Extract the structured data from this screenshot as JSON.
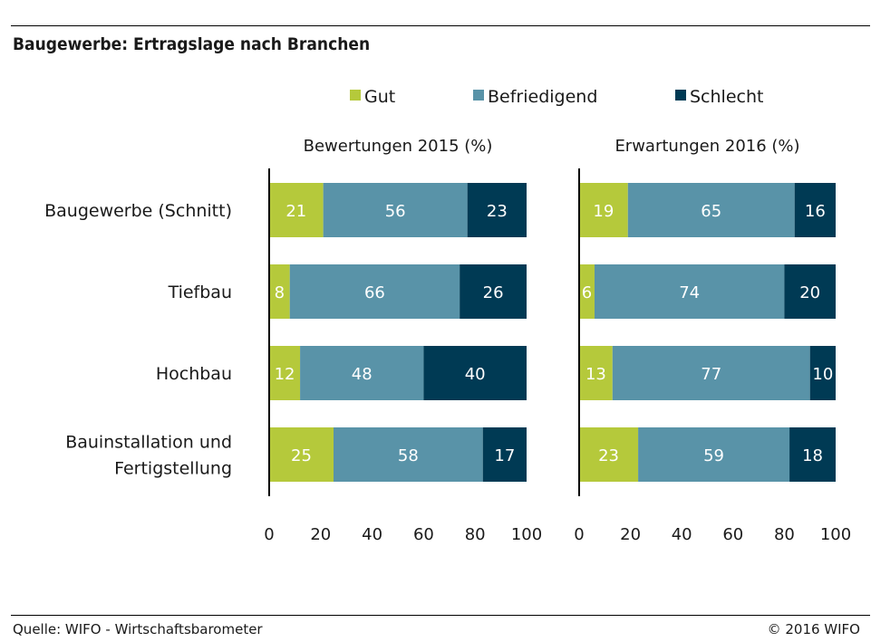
{
  "title": "Baugewerbe: Ertragslage nach Branchen",
  "source": "Quelle: WIFO - Wirtschaftsbarometer",
  "copyright": "© 2016 WIFO",
  "colors": {
    "gut": "#b5c93b",
    "befriedigend": "#5993a8",
    "schlecht": "#003a54",
    "text": "#1a1a1a"
  },
  "chart_data": [
    {
      "type": "bar",
      "orientation": "horizontal",
      "stacked": true,
      "title": "Bewertungen 2015 (%)",
      "categories": [
        "Baugewerbe (Schnitt)",
        "Tiefbau",
        "Hochbau",
        "Bauinstallation und Fertigstellung"
      ],
      "category_lines": [
        [
          "Baugewerbe (Schnitt)"
        ],
        [
          "Tiefbau"
        ],
        [
          "Hochbau"
        ],
        [
          "Bauinstallation und",
          "Fertigstellung"
        ]
      ],
      "series": [
        {
          "name": "Gut",
          "values": [
            21,
            8,
            12,
            25
          ]
        },
        {
          "name": "Befriedigend",
          "values": [
            56,
            66,
            48,
            58
          ]
        },
        {
          "name": "Schlecht",
          "values": [
            23,
            26,
            40,
            17
          ]
        }
      ],
      "xlim": [
        0,
        100
      ],
      "xticks": [
        0,
        20,
        40,
        60,
        80,
        100
      ],
      "legend_position": "top",
      "grid": false
    },
    {
      "type": "bar",
      "orientation": "horizontal",
      "stacked": true,
      "title": "Erwartungen 2016 (%)",
      "categories": [
        "Baugewerbe (Schnitt)",
        "Tiefbau",
        "Hochbau",
        "Bauinstallation und Fertigstellung"
      ],
      "series": [
        {
          "name": "Gut",
          "values": [
            19,
            6,
            13,
            23
          ]
        },
        {
          "name": "Befriedigend",
          "values": [
            65,
            74,
            77,
            59
          ]
        },
        {
          "name": "Schlecht",
          "values": [
            16,
            20,
            10,
            18
          ]
        }
      ],
      "xlim": [
        0,
        100
      ],
      "xticks": [
        0,
        20,
        40,
        60,
        80,
        100
      ],
      "legend_position": "top",
      "grid": false
    }
  ]
}
